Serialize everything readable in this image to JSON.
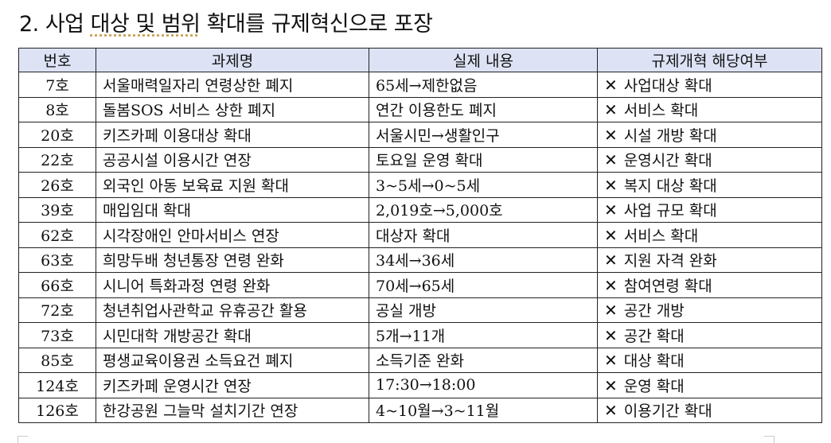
{
  "title_prefix": "2. 사업 ",
  "title_underlined": "대상 및 범위",
  "title_suffix": " 확대를 규제혁신으로 포장",
  "table": {
    "headers": [
      "번호",
      "과제명",
      "실제 내용",
      "규제개혁 해당여부"
    ],
    "x_icon": "✕",
    "rows": [
      [
        "7호",
        "서울매력일자리 연령상한 폐지",
        "65세→제한없음",
        "사업대상 확대"
      ],
      [
        "8호",
        "돌봄SOS 서비스 상한 폐지",
        "연간 이용한도 폐지",
        "서비스 확대"
      ],
      [
        "20호",
        "키즈카페 이용대상 확대",
        "서울시민→생활인구",
        "시설 개방 확대"
      ],
      [
        "22호",
        "공공시설 이용시간 연장",
        "토요일 운영 확대",
        "운영시간 확대"
      ],
      [
        "26호",
        "외국인 아동 보육료 지원 확대",
        "3~5세→0~5세",
        "복지 대상 확대"
      ],
      [
        "39호",
        "매입임대 확대",
        "2,019호→5,000호",
        "사업 규모 확대"
      ],
      [
        "62호",
        "시각장애인 안마서비스 연장",
        "대상자 확대",
        "서비스 확대"
      ],
      [
        "63호",
        "희망두배 청년통장 연령 완화",
        "34세→36세",
        "지원 자격 완화"
      ],
      [
        "66호",
        "시니어 특화과정 연령 완화",
        "70세→65세",
        "참여연령 확대"
      ],
      [
        "72호",
        "청년취업사관학교 유휴공간 활용",
        "공실 개방",
        "공간 개방"
      ],
      [
        "73호",
        "시민대학 개방공간 확대",
        "5개→11개",
        "공간 확대"
      ],
      [
        "85호",
        "평생교육이용권 소득요건 폐지",
        "소득기준 완화",
        "대상 확대"
      ],
      [
        "124호",
        "키즈카페 운영시간 연장",
        "17:30→18:00",
        "운영 확대"
      ],
      [
        "126호",
        "한강공원 그늘막 설치기간 연장",
        "4~10월→3~11월",
        "이용기간 확대"
      ]
    ]
  }
}
